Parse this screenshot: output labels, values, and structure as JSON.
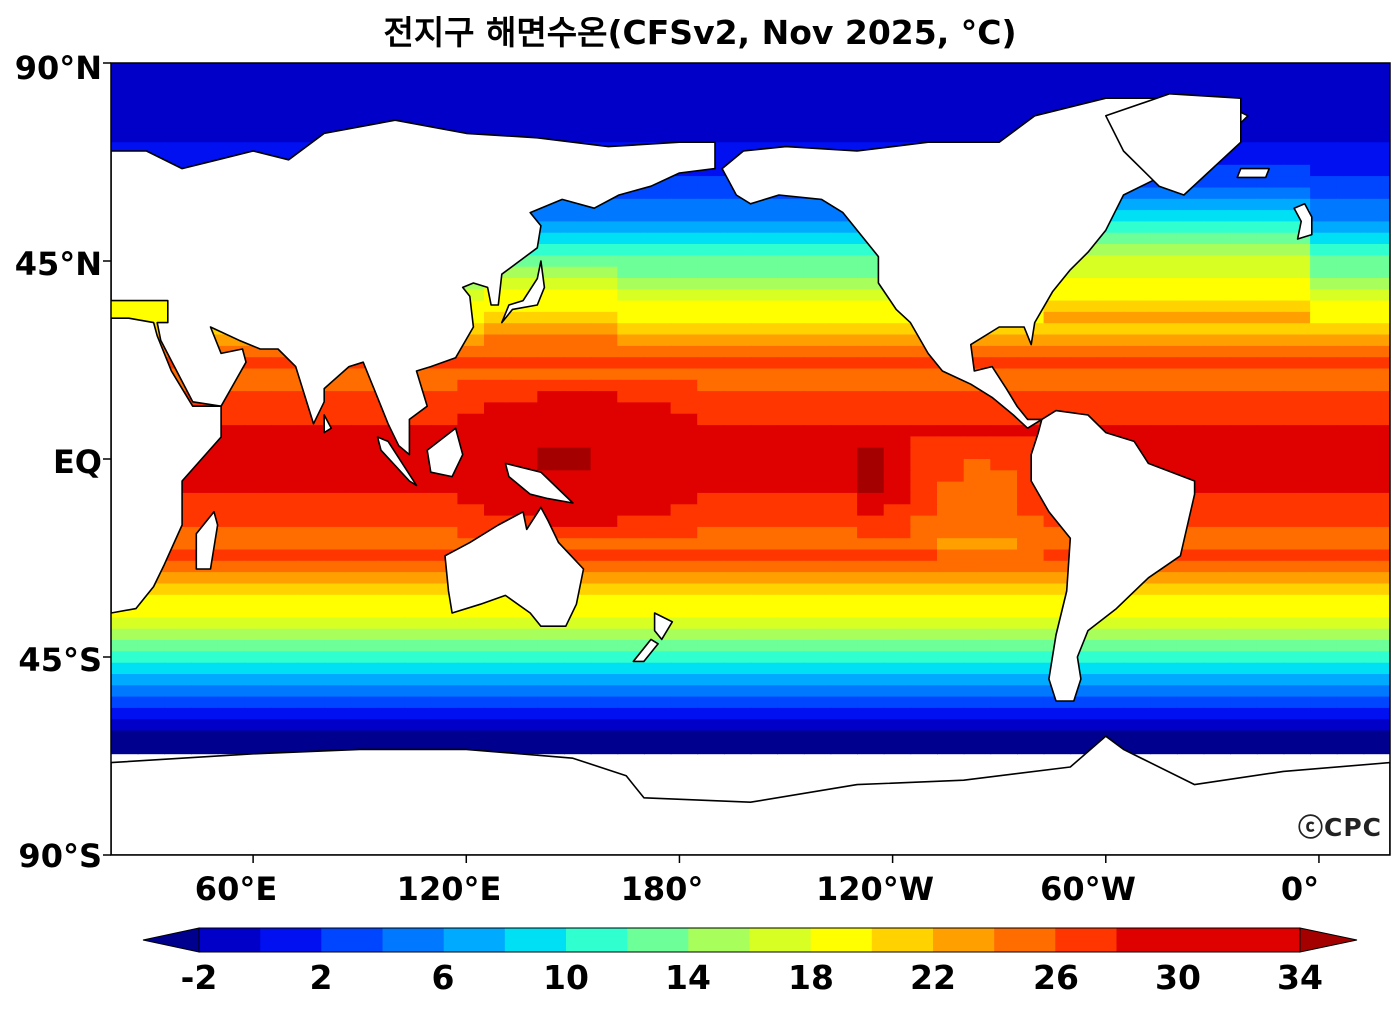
{
  "title": "전지구 해면수온(CFSv2, Nov 2025, °C)",
  "map": {
    "projection": "plate-carree",
    "central_longitude": 180,
    "lon_range": [
      20,
      380
    ],
    "lat_range": [
      -90,
      90
    ],
    "land_color": "#ffffff",
    "coast_color": "#000000",
    "lat_ticks": [
      {
        "value": 90,
        "label": "90°N"
      },
      {
        "value": 45,
        "label": "45°N"
      },
      {
        "value": 0,
        "label": "EQ"
      },
      {
        "value": -45,
        "label": "45°S"
      },
      {
        "value": -90,
        "label": "90°S"
      }
    ],
    "lon_ticks": [
      {
        "value": 60,
        "label": "60°E"
      },
      {
        "value": 120,
        "label": "120°E"
      },
      {
        "value": 180,
        "label": "180°"
      },
      {
        "value": 240,
        "label": "120°W"
      },
      {
        "value": 300,
        "label": "60°W"
      },
      {
        "value": 360,
        "label": "0°"
      }
    ]
  },
  "colorbar": {
    "min": -2,
    "max": 34,
    "step": 2,
    "extend": "both",
    "colors": [
      "#00008f",
      "#0000c8",
      "#0010f0",
      "#0045ff",
      "#0078ff",
      "#00aaff",
      "#00e0f5",
      "#30ffd0",
      "#6dff98",
      "#a8ff5c",
      "#d8ff24",
      "#ffff00",
      "#ffd200",
      "#ffa000",
      "#ff6c00",
      "#ff3600",
      "#df0000",
      "#a40000"
    ],
    "tick_labels": [
      "-2",
      "2",
      "6",
      "10",
      "14",
      "18",
      "22",
      "26",
      "30",
      "34"
    ],
    "tick_values": [
      -2,
      2,
      6,
      10,
      14,
      18,
      22,
      26,
      30,
      34
    ]
  },
  "credit": "ⓒCPC"
}
